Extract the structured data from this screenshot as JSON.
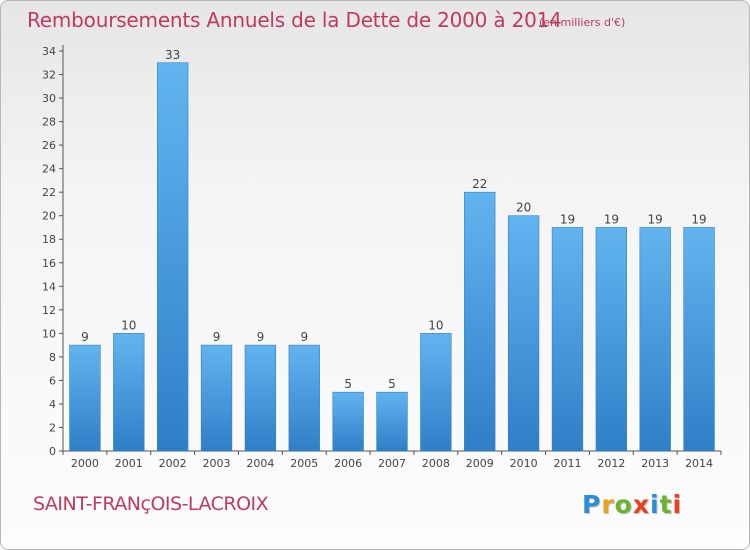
{
  "chart_data": {
    "type": "bar",
    "title": "Remboursements Annuels de la Dette de 2000 à 2014",
    "unit_note": "(en milliers d'€)",
    "categories": [
      "2000",
      "2001",
      "2002",
      "2003",
      "2004",
      "2005",
      "2006",
      "2007",
      "2008",
      "2009",
      "2010",
      "2011",
      "2012",
      "2013",
      "2014"
    ],
    "values": [
      9,
      10,
      33,
      9,
      9,
      9,
      5,
      5,
      10,
      22,
      20,
      19,
      19,
      19,
      19
    ],
    "ylim": [
      0,
      34
    ],
    "yticks": [
      0,
      2,
      4,
      6,
      8,
      10,
      12,
      14,
      16,
      18,
      20,
      22,
      24,
      26,
      28,
      30,
      32,
      34
    ],
    "grid": false,
    "bar_color": "#4a9fe0",
    "title_color": "#c0395f"
  },
  "footer": {
    "place": "SAINT-FRANçOIS-LACROIX",
    "logo_text": "Proxiti",
    "logo_colors": [
      "#2a8fd8",
      "#e8a21c",
      "#6ab42d",
      "#e8411e",
      "#2a8fd8",
      "#6ab42d",
      "#e8411e"
    ]
  }
}
